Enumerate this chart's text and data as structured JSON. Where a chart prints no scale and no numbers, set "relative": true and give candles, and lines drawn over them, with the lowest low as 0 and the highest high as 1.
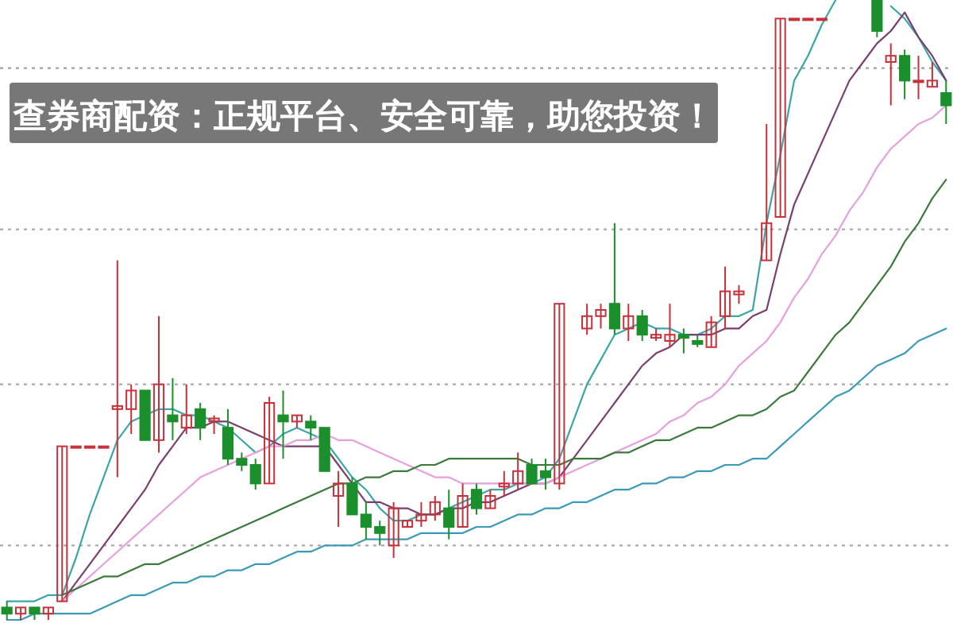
{
  "chart_data": {
    "type": "candlestick",
    "title": "查券商配资：正规平台、安全可靠，助您投资！",
    "relative": true,
    "categories": [
      null,
      null,
      null,
      null,
      null,
      null,
      null,
      null,
      null,
      null,
      null,
      null,
      null,
      null,
      null,
      null,
      null,
      null,
      null,
      null,
      null,
      null,
      null,
      null,
      null,
      null,
      null,
      null,
      null,
      null,
      null,
      null,
      null,
      null,
      null,
      null,
      null,
      null,
      null,
      null,
      null,
      null,
      null,
      null,
      null,
      null,
      null,
      null,
      null,
      null,
      null,
      null,
      null,
      null,
      null,
      null,
      null,
      null,
      null,
      null,
      null,
      null,
      null,
      null,
      null,
      null,
      null,
      null,
      null
    ],
    "ohlc": [
      [
        0.02,
        0.03,
        0,
        0.01
      ],
      [
        0.01,
        0.02,
        0,
        0.02
      ],
      [
        0.02,
        0.02,
        0,
        0.01
      ],
      [
        0.01,
        0.02,
        0,
        0.02
      ],
      [
        0.03,
        0.28,
        0.03,
        0.28
      ],
      [
        0.28,
        0.28,
        0.28,
        0.28
      ],
      [
        0.28,
        0.28,
        0.28,
        0.28
      ],
      [
        0.28,
        0.28,
        0.28,
        0.28
      ],
      [
        0.34,
        0.58,
        0.23,
        0.345
      ],
      [
        0.34,
        0.38,
        0.3,
        0.37
      ],
      [
        0.37,
        0.37,
        0.29,
        0.29
      ],
      [
        0.29,
        0.49,
        0.27,
        0.38
      ],
      [
        0.33,
        0.39,
        0.29,
        0.32
      ],
      [
        0.31,
        0.38,
        0.3,
        0.33
      ],
      [
        0.34,
        0.35,
        0.29,
        0.31
      ],
      [
        0.32,
        0.33,
        0.3,
        0.325
      ],
      [
        0.31,
        0.34,
        0.25,
        0.26
      ],
      [
        0.26,
        0.27,
        0.24,
        0.25
      ],
      [
        0.25,
        0.26,
        0.21,
        0.22
      ],
      [
        0.22,
        0.36,
        0.22,
        0.35
      ],
      [
        0.33,
        0.37,
        0.26,
        0.32
      ],
      [
        0.32,
        0.33,
        0.31,
        0.33
      ],
      [
        0.32,
        0.33,
        0.29,
        0.31
      ],
      [
        0.31,
        0.31,
        0.24,
        0.24
      ],
      [
        0.2,
        0.24,
        0.15,
        0.22
      ],
      [
        0.22,
        0.23,
        0.17,
        0.17
      ],
      [
        0.17,
        0.19,
        0.13,
        0.15
      ],
      [
        0.15,
        0.16,
        0.12,
        0.14
      ],
      [
        0.12,
        0.19,
        0.1,
        0.18
      ],
      [
        0.15,
        0.16,
        0.15,
        0.16
      ],
      [
        0.16,
        0.19,
        0.15,
        0.17
      ],
      [
        0.17,
        0.2,
        0.16,
        0.19
      ],
      [
        0.18,
        0.21,
        0.13,
        0.15
      ],
      [
        0.15,
        0.22,
        0.15,
        0.2
      ],
      [
        0.21,
        0.22,
        0.17,
        0.18
      ],
      [
        0.18,
        0.21,
        0.18,
        0.2
      ],
      [
        0.215,
        0.24,
        0.2,
        0.22
      ],
      [
        0.22,
        0.27,
        0.21,
        0.24
      ],
      [
        0.25,
        0.26,
        0.22,
        0.22
      ],
      [
        0.24,
        0.26,
        0.21,
        0.23
      ],
      [
        0.22,
        0.51,
        0.21,
        0.51
      ],
      null,
      [
        0.47,
        0.51,
        0.46,
        0.49
      ],
      [
        0.49,
        0.51,
        0.47,
        0.5
      ],
      [
        0.51,
        0.64,
        0.46,
        0.47
      ],
      [
        0.47,
        0.51,
        0.45,
        0.49
      ],
      [
        0.49,
        0.5,
        0.45,
        0.46
      ],
      [
        0.455,
        0.47,
        0.45,
        0.46
      ],
      [
        0.45,
        0.51,
        0.44,
        0.46
      ],
      [
        0.46,
        0.47,
        0.43,
        0.455
      ],
      [
        0.45,
        0.46,
        0.44,
        0.445
      ],
      [
        0.44,
        0.49,
        0.44,
        0.48
      ],
      [
        0.49,
        0.57,
        0.47,
        0.53
      ],
      [
        0.525,
        0.54,
        0.51,
        0.53
      ],
      null,
      [
        0.58,
        0.8,
        0.58,
        0.64
      ],
      [
        0.65,
        0.97,
        0.65,
        0.97
      ],
      [
        0.97,
        0.97,
        0.97,
        0.97
      ],
      [
        0.97,
        0.97,
        0.97,
        0.97
      ],
      [
        0.97,
        0.97,
        0.97,
        0.97
      ],
      null,
      null,
      null,
      [
        1,
        1,
        0.94,
        0.95
      ],
      [
        0.9,
        0.93,
        0.83,
        0.91
      ],
      [
        0.91,
        0.92,
        0.84,
        0.87
      ],
      [
        0.87,
        0.91,
        0.84,
        0.87
      ],
      [
        0.86,
        0.9,
        0.86,
        0.87
      ],
      [
        0.85,
        0.87,
        0.8,
        0.83
      ]
    ],
    "series": [
      {
        "type": "line",
        "color": "#3aa6a8",
        "values": [
          0.03,
          0.03,
          0.03,
          0.04,
          0.04,
          0.1,
          0.17,
          0.23,
          0.29,
          0.32,
          0.33,
          0.34,
          0.34,
          0.33,
          0.33,
          0.32,
          0.31,
          0.29,
          0.27,
          0.28,
          0.3,
          0.31,
          0.3,
          0.29,
          0.26,
          0.23,
          0.21,
          0.18,
          0.16,
          0.16,
          0.17,
          0.17,
          0.18,
          0.19,
          0.2,
          0.21,
          0.21,
          0.22,
          0.22,
          0.23,
          0.26,
          0.32,
          0.38,
          0.42,
          0.46,
          0.47,
          0.48,
          0.47,
          0.47,
          0.46,
          0.46,
          0.47,
          0.49,
          0.49,
          0.5,
          0.64,
          0.75,
          0.87,
          0.91,
          0.96,
          1,
          null,
          null,
          null,
          0.99,
          0.97,
          0.94,
          0.9,
          0.87
        ]
      },
      {
        "type": "line",
        "color": "#7b3f6e",
        "values": [
          null,
          null,
          null,
          null,
          0.03,
          0.06,
          0.09,
          0.12,
          0.15,
          0.18,
          0.21,
          0.25,
          0.28,
          0.31,
          0.31,
          0.32,
          0.32,
          0.31,
          0.3,
          0.29,
          0.28,
          0.28,
          0.28,
          0.28,
          0.25,
          0.22,
          0.19,
          0.19,
          0.18,
          0.18,
          0.17,
          0.17,
          0.18,
          0.18,
          0.19,
          0.19,
          0.2,
          0.21,
          0.22,
          0.22,
          0.23,
          0.26,
          0.29,
          0.32,
          0.35,
          0.38,
          0.41,
          0.43,
          0.44,
          0.46,
          0.46,
          0.46,
          0.47,
          0.47,
          0.49,
          0.5,
          0.59,
          0.67,
          0.72,
          0.77,
          0.82,
          0.87,
          0.9,
          0.93,
          0.95,
          0.98,
          0.94,
          0.91,
          0.87
        ]
      },
      {
        "type": "line",
        "color": "#e6a0e0",
        "values": [
          null,
          null,
          null,
          null,
          0.03,
          0.05,
          0.07,
          0.09,
          0.11,
          0.13,
          0.15,
          0.17,
          0.19,
          0.21,
          0.23,
          0.24,
          0.25,
          0.26,
          0.27,
          0.28,
          0.28,
          0.29,
          0.29,
          0.3,
          0.29,
          0.29,
          0.28,
          0.27,
          0.26,
          0.25,
          0.24,
          0.23,
          0.23,
          0.22,
          0.22,
          0.22,
          0.22,
          0.22,
          0.22,
          0.22,
          0.23,
          0.24,
          0.25,
          0.26,
          0.27,
          0.28,
          0.29,
          0.3,
          0.32,
          0.33,
          0.35,
          0.36,
          0.38,
          0.41,
          0.43,
          0.45,
          0.48,
          0.52,
          0.55,
          0.59,
          0.62,
          0.66,
          0.69,
          0.73,
          0.76,
          0.78,
          0.8,
          0.81,
          0.83
        ]
      },
      {
        "type": "line",
        "color": "#3a7a3a",
        "values": [
          null,
          null,
          null,
          null,
          0.04,
          0.05,
          0.06,
          0.07,
          0.07,
          0.08,
          0.09,
          0.09,
          0.1,
          0.11,
          0.12,
          0.13,
          0.14,
          0.15,
          0.16,
          0.17,
          0.18,
          0.19,
          0.2,
          0.21,
          0.22,
          0.22,
          0.23,
          0.23,
          0.24,
          0.24,
          0.25,
          0.25,
          0.26,
          0.26,
          0.26,
          0.26,
          0.26,
          0.26,
          0.25,
          0.25,
          0.25,
          0.26,
          0.26,
          0.26,
          0.27,
          0.27,
          0.28,
          0.29,
          0.29,
          0.3,
          0.31,
          0.31,
          0.32,
          0.33,
          0.33,
          0.34,
          0.36,
          0.37,
          0.4,
          0.43,
          0.46,
          0.48,
          0.51,
          0.54,
          0.57,
          0.61,
          0.64,
          0.68,
          0.71
        ]
      },
      {
        "type": "line",
        "color": "#3a9ab8",
        "values": [
          0,
          0,
          0.01,
          0.01,
          0.01,
          0.01,
          0.01,
          0.02,
          0.03,
          0.04,
          0.04,
          0.05,
          0.06,
          0.06,
          0.07,
          0.07,
          0.08,
          0.08,
          0.09,
          0.09,
          0.1,
          0.11,
          0.11,
          0.12,
          0.12,
          0.12,
          0.13,
          0.13,
          0.13,
          0.13,
          0.14,
          0.14,
          0.14,
          0.14,
          0.15,
          0.15,
          0.16,
          0.17,
          0.17,
          0.18,
          0.18,
          0.19,
          0.19,
          0.2,
          0.21,
          0.21,
          0.22,
          0.22,
          0.23,
          0.23,
          0.24,
          0.24,
          0.25,
          0.25,
          0.26,
          0.26,
          0.28,
          0.3,
          0.32,
          0.34,
          0.36,
          0.37,
          0.39,
          0.41,
          0.42,
          0.43,
          0.45,
          0.46,
          0.47
        ]
      }
    ],
    "ref_lines": [
      {
        "axis": "y",
        "value": 0.89,
        "color": "#aaaaaa",
        "line_style": "dotted"
      },
      {
        "axis": "y",
        "value": 0.63,
        "color": "#aaaaaa",
        "line_style": "dotted"
      },
      {
        "axis": "y",
        "value": 0.38,
        "color": "#aaaaaa",
        "line_style": "dotted"
      },
      {
        "axis": "y",
        "value": 0.12,
        "color": "#aaaaaa",
        "line_style": "dotted"
      }
    ]
  }
}
